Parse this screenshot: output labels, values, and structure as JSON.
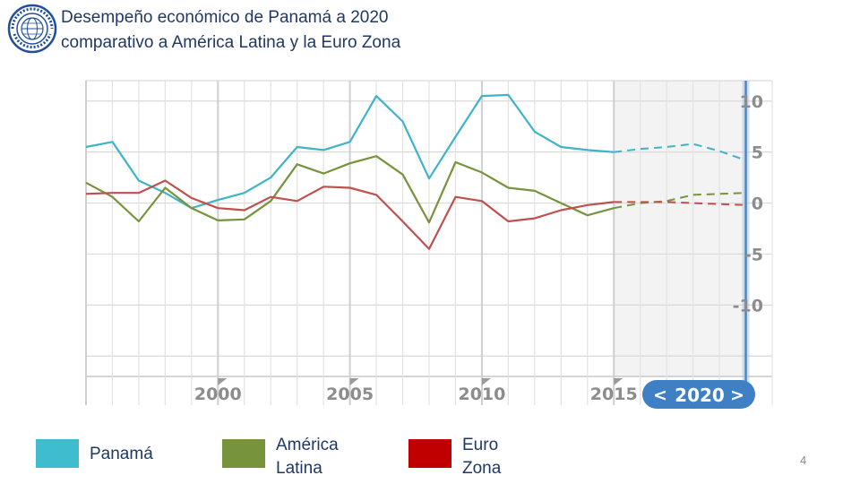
{
  "title": {
    "line1": "Desempeño económico de Panamá a 2020",
    "line2": "comparativo a América Latina y la Euro Zona"
  },
  "logo": {
    "icon": "imf-seal-icon",
    "text": "FONDO MONETARIO INTERNACIONAL"
  },
  "chart_data": {
    "type": "line",
    "x": [
      1995,
      1996,
      1997,
      1998,
      1999,
      2000,
      2001,
      2002,
      2003,
      2004,
      2005,
      2006,
      2007,
      2008,
      2009,
      2010,
      2011,
      2012,
      2013,
      2014,
      2015,
      2016,
      2017,
      2018,
      2019,
      2020
    ],
    "series": [
      {
        "name": "Panamá",
        "color": "#3fb3c8",
        "values": [
          5.5,
          6.0,
          2.2,
          1.0,
          -0.5,
          0.3,
          1.0,
          2.5,
          5.5,
          5.2,
          6.0,
          10.5,
          8.0,
          2.4,
          6.5,
          10.5,
          10.6,
          7.0,
          5.5,
          5.2,
          5.0,
          5.3,
          5.5,
          5.8,
          5.1,
          4.2
        ],
        "projection_from": 2015
      },
      {
        "name": "América Latina",
        "color": "#77933c",
        "values": [
          2.0,
          0.6,
          -1.8,
          1.5,
          -0.5,
          -1.7,
          -1.6,
          0.2,
          3.8,
          2.9,
          3.9,
          4.6,
          2.8,
          -1.9,
          4.0,
          3.0,
          1.5,
          1.2,
          0.0,
          -1.2,
          -0.5,
          0.0,
          0.2,
          0.8,
          0.9,
          1.0
        ],
        "projection_from": 2015
      },
      {
        "name": "Euro Zona",
        "color": "#c0504d",
        "values": [
          0.9,
          1.0,
          1.0,
          2.2,
          0.5,
          -0.5,
          -0.7,
          0.6,
          0.2,
          1.6,
          1.5,
          0.8,
          -1.8,
          -4.5,
          0.6,
          0.2,
          -1.8,
          -1.5,
          -0.7,
          -0.2,
          0.1,
          0.1,
          0.1,
          0.0,
          -0.1,
          -0.2
        ],
        "projection_from": 2015
      }
    ],
    "xticks": [
      "2000",
      "2005",
      "2010",
      "2015"
    ],
    "yticks": [
      "10",
      "5",
      "0",
      "-5",
      "-10"
    ],
    "ylim": [
      -17,
      12
    ],
    "xlim": [
      1995,
      2021
    ],
    "grid": true,
    "selected_year": "2020",
    "selector_left": "<",
    "selector_right": ">"
  },
  "legend": [
    {
      "label": "Panamá",
      "color": "#3fbccd"
    },
    {
      "label": "América Latina",
      "color": "#77933c"
    },
    {
      "label": "Euro Zona",
      "color": "#c00000"
    }
  ],
  "page_number": "4"
}
